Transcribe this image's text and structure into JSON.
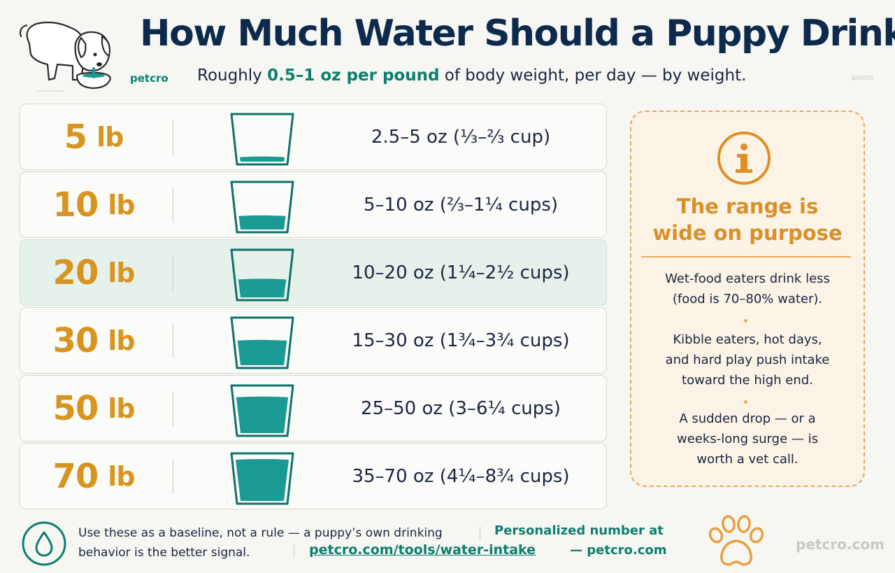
{
  "header": {
    "title": "How Much Water Should a Puppy Drink?",
    "subtitle_pre": "Roughly ",
    "subtitle_highlight": "0.5–1 oz per pound",
    "subtitle_post": " of body weight, per day — by weight.",
    "brand": "petcro",
    "watermark": "petcro"
  },
  "rows": [
    {
      "weight": "5",
      "unit": "lb",
      "amount": "2.5–5 oz (⅓–⅔ cup)",
      "fill": 0.1,
      "highlighted": false
    },
    {
      "weight": "10",
      "unit": "lb",
      "amount": "5–10 oz (⅔–1¼ cups)",
      "fill": 0.3,
      "highlighted": false
    },
    {
      "weight": "20",
      "unit": "lb",
      "amount": "10–20 oz (1¼–2½ cups)",
      "fill": 0.4,
      "highlighted": true
    },
    {
      "weight": "30",
      "unit": "lb",
      "amount": "15–30 oz (1¾–3¾ cups)",
      "fill": 0.55,
      "highlighted": false
    },
    {
      "weight": "50",
      "unit": "lb",
      "amount": "25–50 oz (3–6¼ cups)",
      "fill": 0.8,
      "highlighted": false
    },
    {
      "weight": "70",
      "unit": "lb",
      "amount": "35–70 oz (4¼–8¾ cups)",
      "fill": 0.92,
      "highlighted": false
    }
  ],
  "info": {
    "icon": "info-icon",
    "title_line1": "The range is",
    "title_line2": "wide on purpose",
    "p1_line1": "Wet-food eaters drink less",
    "p1_line2": "(food is 70–80% water).",
    "p2_line1": "Kibble eaters, hot days,",
    "p2_line2": "and hard play push intake",
    "p2_line3": "toward the high end.",
    "p3_line1": "A sudden drop — or a",
    "p3_line2": "weeks-long surge — is",
    "p3_line3": "worth a vet call."
  },
  "footer": {
    "note_line1": "Use these as a baseline, not a rule — a puppy’s own drinking",
    "note_line2": "behavior is the better signal.",
    "personalized": "Personalized number at",
    "link": "petcro.com/tools/water-intake",
    "dash_brand": "— petcro.com",
    "brand": "petcro.com"
  },
  "colors": {
    "title": "#0d2a4d",
    "accent_teal": "#0e7e6e",
    "water": "#1a9a93",
    "weight": "#d89420",
    "info_border": "#e8a95c"
  }
}
